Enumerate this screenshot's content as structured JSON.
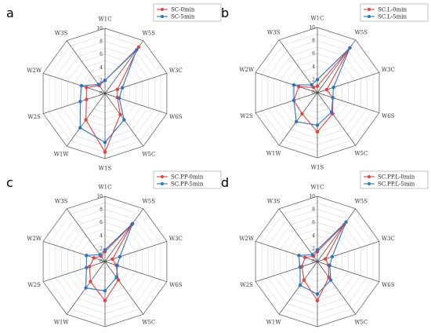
{
  "chart_data": [
    {
      "type": "radar",
      "panel": "a",
      "axes": [
        "W1C",
        "W5S",
        "W3C",
        "W6S",
        "W5C",
        "W1S",
        "W1W",
        "W2S",
        "W2W",
        "W3S"
      ],
      "ticks": [
        "0",
        "2",
        "4",
        "6",
        "8",
        "10"
      ],
      "rlim": [
        0,
        10
      ],
      "legend_position": "top-right",
      "series": [
        {
          "name": "SC-0min",
          "color": "#e8413c",
          "values": [
            2.0,
            8.8,
            2.0,
            2.0,
            4.0,
            9.0,
            5.0,
            3.0,
            3.0,
            1.5
          ]
        },
        {
          "name": "SC-5min",
          "color": "#2a74c9",
          "values": [
            2.0,
            8.3,
            2.8,
            2.3,
            5.0,
            7.5,
            6.5,
            4.0,
            3.8,
            1.7
          ]
        }
      ]
    },
    {
      "type": "radar",
      "panel": "b",
      "axes": [
        "W1C",
        "W5S",
        "W3C",
        "W6S",
        "W5C",
        "W1S",
        "W1W",
        "W2S",
        "W2W",
        "W3S"
      ],
      "ticks": [
        "0",
        "2",
        "4",
        "6",
        "8",
        "10"
      ],
      "rlim": [
        0,
        10
      ],
      "legend_position": "top-right",
      "series": [
        {
          "name": "SC.L-0min",
          "color": "#e8413c",
          "values": [
            1.0,
            8.5,
            1.5,
            2.5,
            4.0,
            6.0,
            4.0,
            3.8,
            3.0,
            1.0
          ]
        },
        {
          "name": "SC.L-5min",
          "color": "#2a74c9",
          "values": [
            2.0,
            8.5,
            2.6,
            2.5,
            3.7,
            5.0,
            5.5,
            3.8,
            3.8,
            1.5
          ]
        }
      ]
    },
    {
      "type": "radar",
      "panel": "c",
      "axes": [
        "W1C",
        "W5S",
        "W3C",
        "W6S",
        "W5C",
        "W1S",
        "W1W",
        "W2S",
        "W2W",
        "W3S"
      ],
      "ticks": [
        "0",
        "2",
        "4",
        "6",
        "8",
        "10"
      ],
      "rlim": [
        0,
        10
      ],
      "legend_position": "top-right",
      "series": [
        {
          "name": "SC.PP-0min",
          "color": "#e8413c",
          "values": [
            1.5,
            7.0,
            1.2,
            1.8,
            3.5,
            6.0,
            3.8,
            2.5,
            1.8,
            1.0
          ]
        },
        {
          "name": "SC.PP-5min",
          "color": "#2a74c9",
          "values": [
            1.8,
            7.2,
            2.4,
            2.0,
            3.0,
            4.5,
            5.0,
            3.0,
            3.0,
            1.3
          ]
        }
      ]
    },
    {
      "type": "radar",
      "panel": "d",
      "axes": [
        "W1C",
        "W5S",
        "W3C",
        "W6S",
        "W5C",
        "W1S",
        "W1W",
        "W2S",
        "W2W",
        "W3S"
      ],
      "ticks": [
        "0",
        "2",
        "4",
        "6",
        "8",
        "10"
      ],
      "rlim": [
        0,
        10
      ],
      "legend_position": "top-right",
      "series": [
        {
          "name": "SC.PP.L-0min",
          "color": "#e8413c",
          "values": [
            1.5,
            7.0,
            1.3,
            1.8,
            3.0,
            6.0,
            3.5,
            2.5,
            2.0,
            1.0
          ]
        },
        {
          "name": "SC.PP.L-5min",
          "color": "#2a74c9",
          "values": [
            1.8,
            7.5,
            2.4,
            2.0,
            3.5,
            5.0,
            4.5,
            2.8,
            3.0,
            1.3
          ]
        }
      ]
    }
  ]
}
